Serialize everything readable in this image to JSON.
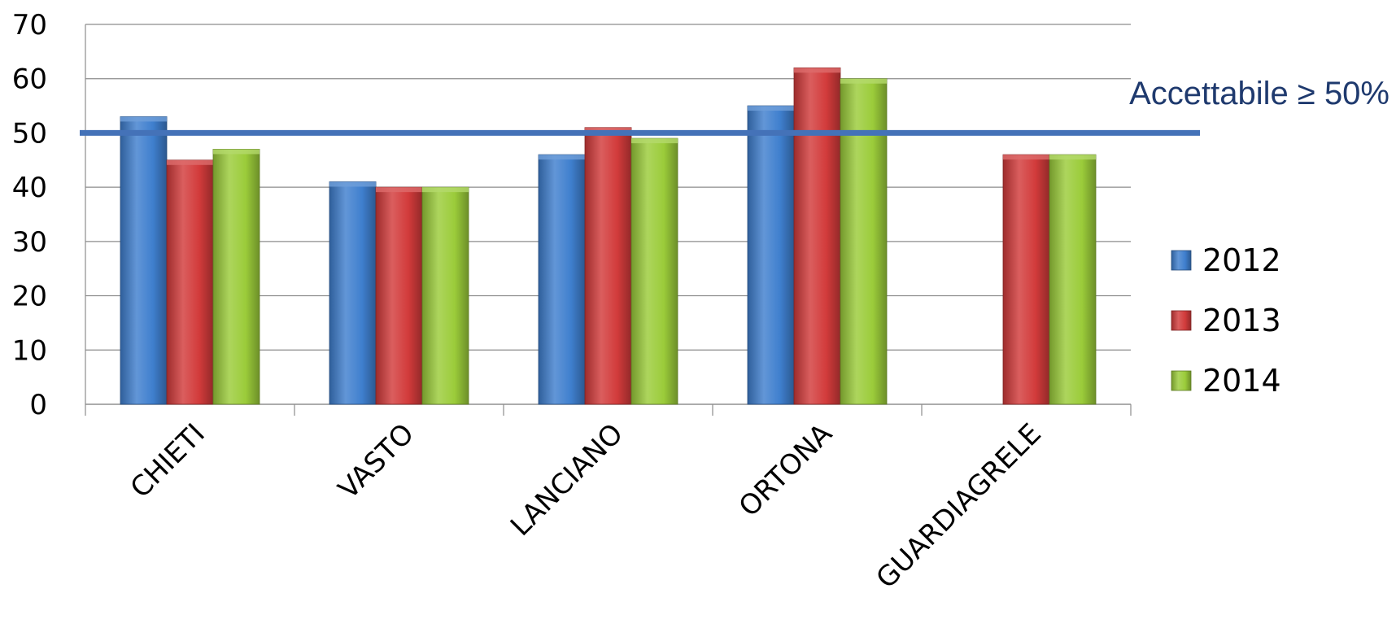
{
  "chart_data": {
    "type": "bar",
    "title": "",
    "xlabel": "",
    "ylabel": "",
    "categories": [
      "CHIETI",
      "VASTO",
      "LANCIANO",
      "ORTONA",
      "GUARDIAGRELE"
    ],
    "series": [
      {
        "name": "2012",
        "color": "#3f7fce",
        "values": [
          53,
          41,
          46,
          55,
          null
        ]
      },
      {
        "name": "2013",
        "color": "#d23b3b",
        "values": [
          45,
          40,
          51,
          62,
          46
        ]
      },
      {
        "name": "2014",
        "color": "#9bcc3a",
        "values": [
          47,
          40,
          49,
          60,
          46
        ]
      }
    ],
    "ylim": [
      0,
      70
    ],
    "yticks": [
      0,
      10,
      20,
      30,
      40,
      50,
      60,
      70
    ],
    "grid": true,
    "legend_position": "right",
    "threshold": {
      "value": 50,
      "label": "Accettabile ≥ 50%",
      "color": "#4472b8",
      "label_color": "#1f3a6e"
    }
  }
}
